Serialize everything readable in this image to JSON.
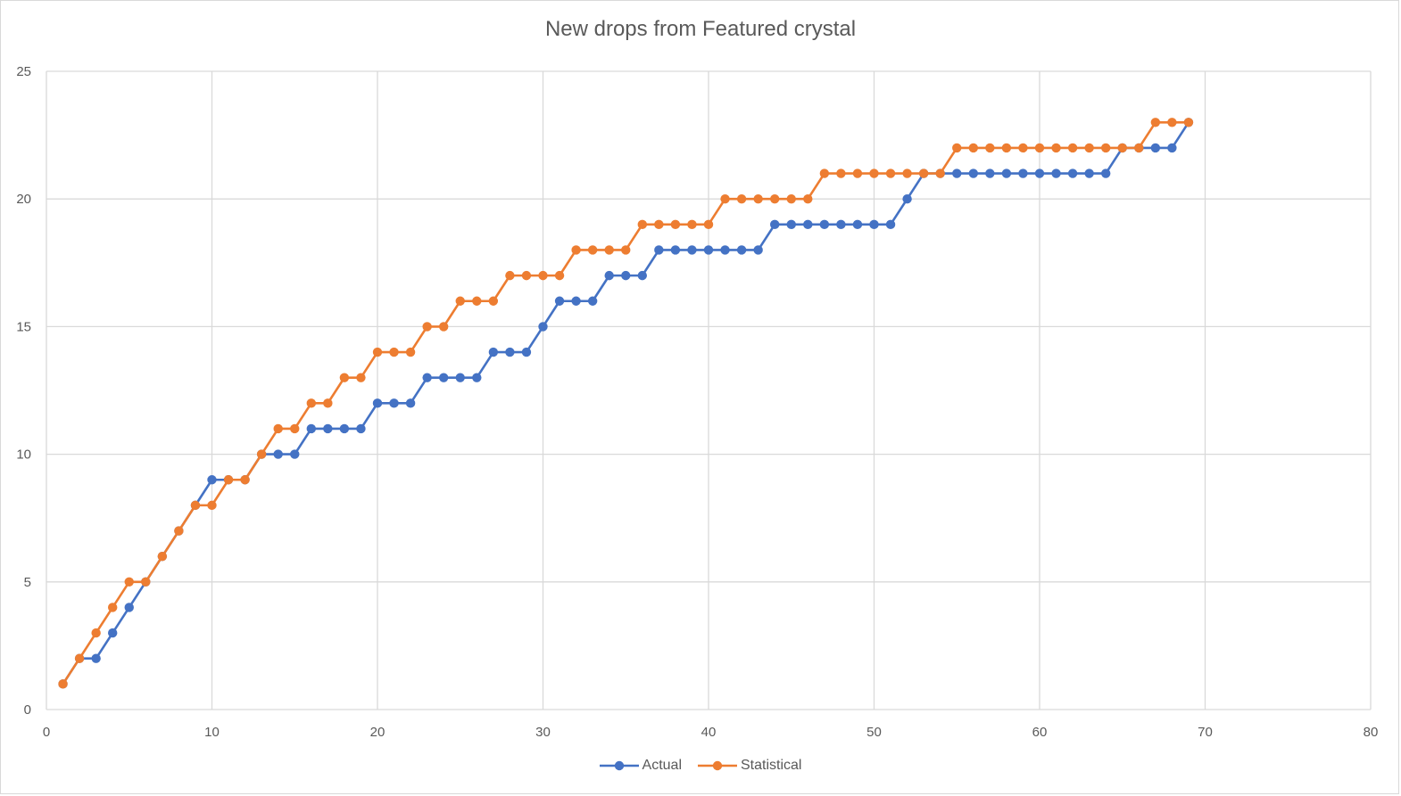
{
  "chart_data": {
    "type": "line",
    "title": "New drops from Featured crystal",
    "xlabel": "",
    "ylabel": "",
    "xlim": [
      0,
      80
    ],
    "ylim": [
      0,
      25
    ],
    "x_ticks": [
      0,
      10,
      20,
      30,
      40,
      50,
      60,
      70,
      80
    ],
    "y_ticks": [
      0,
      5,
      10,
      15,
      20,
      25
    ],
    "grid": true,
    "legend_position": "bottom",
    "x": [
      1,
      2,
      3,
      4,
      5,
      6,
      7,
      8,
      9,
      10,
      11,
      12,
      13,
      14,
      15,
      16,
      17,
      18,
      19,
      20,
      21,
      22,
      23,
      24,
      25,
      26,
      27,
      28,
      29,
      30,
      31,
      32,
      33,
      34,
      35,
      36,
      37,
      38,
      39,
      40,
      41,
      42,
      43,
      44,
      45,
      46,
      47,
      48,
      49,
      50,
      51,
      52,
      53,
      54,
      55,
      56,
      57,
      58,
      59,
      60,
      61,
      62,
      63,
      64,
      65,
      66,
      67,
      68,
      69
    ],
    "series": [
      {
        "name": "Actual",
        "color": "#4472c4",
        "values": [
          1,
          2,
          2,
          3,
          4,
          5,
          6,
          7,
          8,
          9,
          9,
          9,
          10,
          10,
          10,
          11,
          11,
          11,
          11,
          12,
          12,
          12,
          13,
          13,
          13,
          13,
          14,
          14,
          14,
          15,
          16,
          16,
          16,
          17,
          17,
          17,
          18,
          18,
          18,
          18,
          18,
          18,
          18,
          19,
          19,
          19,
          19,
          19,
          19,
          19,
          19,
          20,
          21,
          21,
          21,
          21,
          21,
          21,
          21,
          21,
          21,
          21,
          21,
          21,
          22,
          22,
          22,
          22,
          23
        ]
      },
      {
        "name": "Statistical",
        "color": "#ed7d31",
        "values": [
          1,
          2,
          3,
          4,
          5,
          5,
          6,
          7,
          8,
          8,
          9,
          9,
          10,
          11,
          11,
          12,
          12,
          13,
          13,
          14,
          14,
          14,
          15,
          15,
          16,
          16,
          16,
          17,
          17,
          17,
          17,
          18,
          18,
          18,
          18,
          19,
          19,
          19,
          19,
          19,
          20,
          20,
          20,
          20,
          20,
          20,
          21,
          21,
          21,
          21,
          21,
          21,
          21,
          21,
          22,
          22,
          22,
          22,
          22,
          22,
          22,
          22,
          22,
          22,
          22,
          22,
          23,
          23,
          23
        ]
      }
    ]
  }
}
